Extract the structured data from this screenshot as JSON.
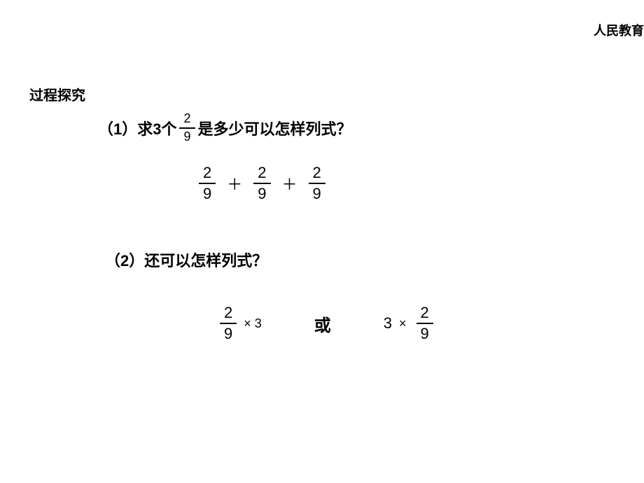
{
  "header": "人民教育",
  "sectionTitle": "过程探究",
  "question1": {
    "prefix": "（1）求3个",
    "suffix": "是多少可以怎样列式？",
    "fraction": {
      "num": "2",
      "den": "9"
    }
  },
  "expression1": {
    "fraction": {
      "num": "2",
      "den": "9"
    },
    "operator": "＋"
  },
  "question2": "（2）还可以怎样列式？",
  "expression2": {
    "left": {
      "fraction": {
        "num": "2",
        "den": "9"
      },
      "times": "× 3"
    },
    "or": "或",
    "right": {
      "three": "3",
      "times": "×",
      "fraction": {
        "num": "2",
        "den": "9"
      }
    }
  }
}
